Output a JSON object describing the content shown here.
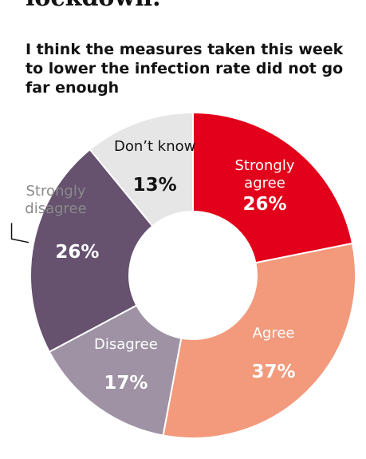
{
  "header": {
    "text": "lockdown."
  },
  "chart_data": {
    "type": "donut",
    "title": "I think the measures taken this week to lower the infection rate did not go far enough",
    "categories": [
      "Strongly agree",
      "Agree",
      "Disagree",
      "Strongly disagree",
      "Don’t know"
    ],
    "values": [
      26,
      37,
      17,
      26,
      13
    ],
    "value_labels": [
      "26%",
      "37%",
      "17%",
      "26%",
      "13%"
    ],
    "colors": [
      "#e2001a",
      "#f29a7b",
      "#9e92a4",
      "#66516f",
      "#e6e6e6"
    ]
  }
}
